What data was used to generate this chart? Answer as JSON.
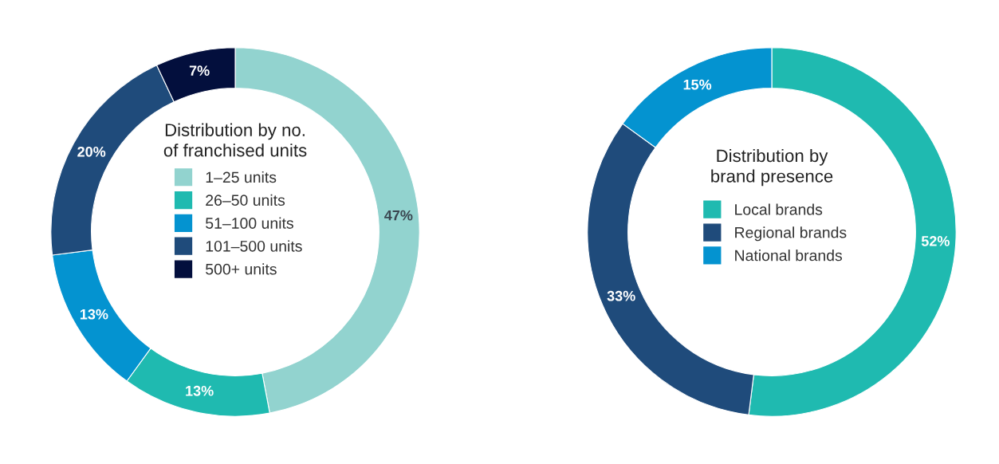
{
  "chart_data": [
    {
      "type": "donut",
      "title": "Distribution by no.\nof franchised units",
      "categories": [
        "1–25 units",
        "26–50 units",
        "51–100 units",
        "101–500 units",
        "500+ units"
      ],
      "values": [
        47,
        13,
        13,
        20,
        7
      ],
      "colors": [
        "#92d3cf",
        "#1fbab0",
        "#0493d0",
        "#1f4b7b",
        "#030f3d"
      ],
      "value_labels": [
        "47%",
        "13%",
        "13%",
        "20%",
        "7%"
      ],
      "legend": "center"
    },
    {
      "type": "donut",
      "title": "Distribution by\nbrand presence",
      "categories": [
        "Local brands",
        "Regional brands",
        "National brands"
      ],
      "values": [
        52,
        33,
        15
      ],
      "colors": [
        "#1fbab0",
        "#1f4b7b",
        "#0493d0"
      ],
      "value_labels": [
        "52%",
        "33%",
        "15%"
      ],
      "legend": "center"
    }
  ]
}
